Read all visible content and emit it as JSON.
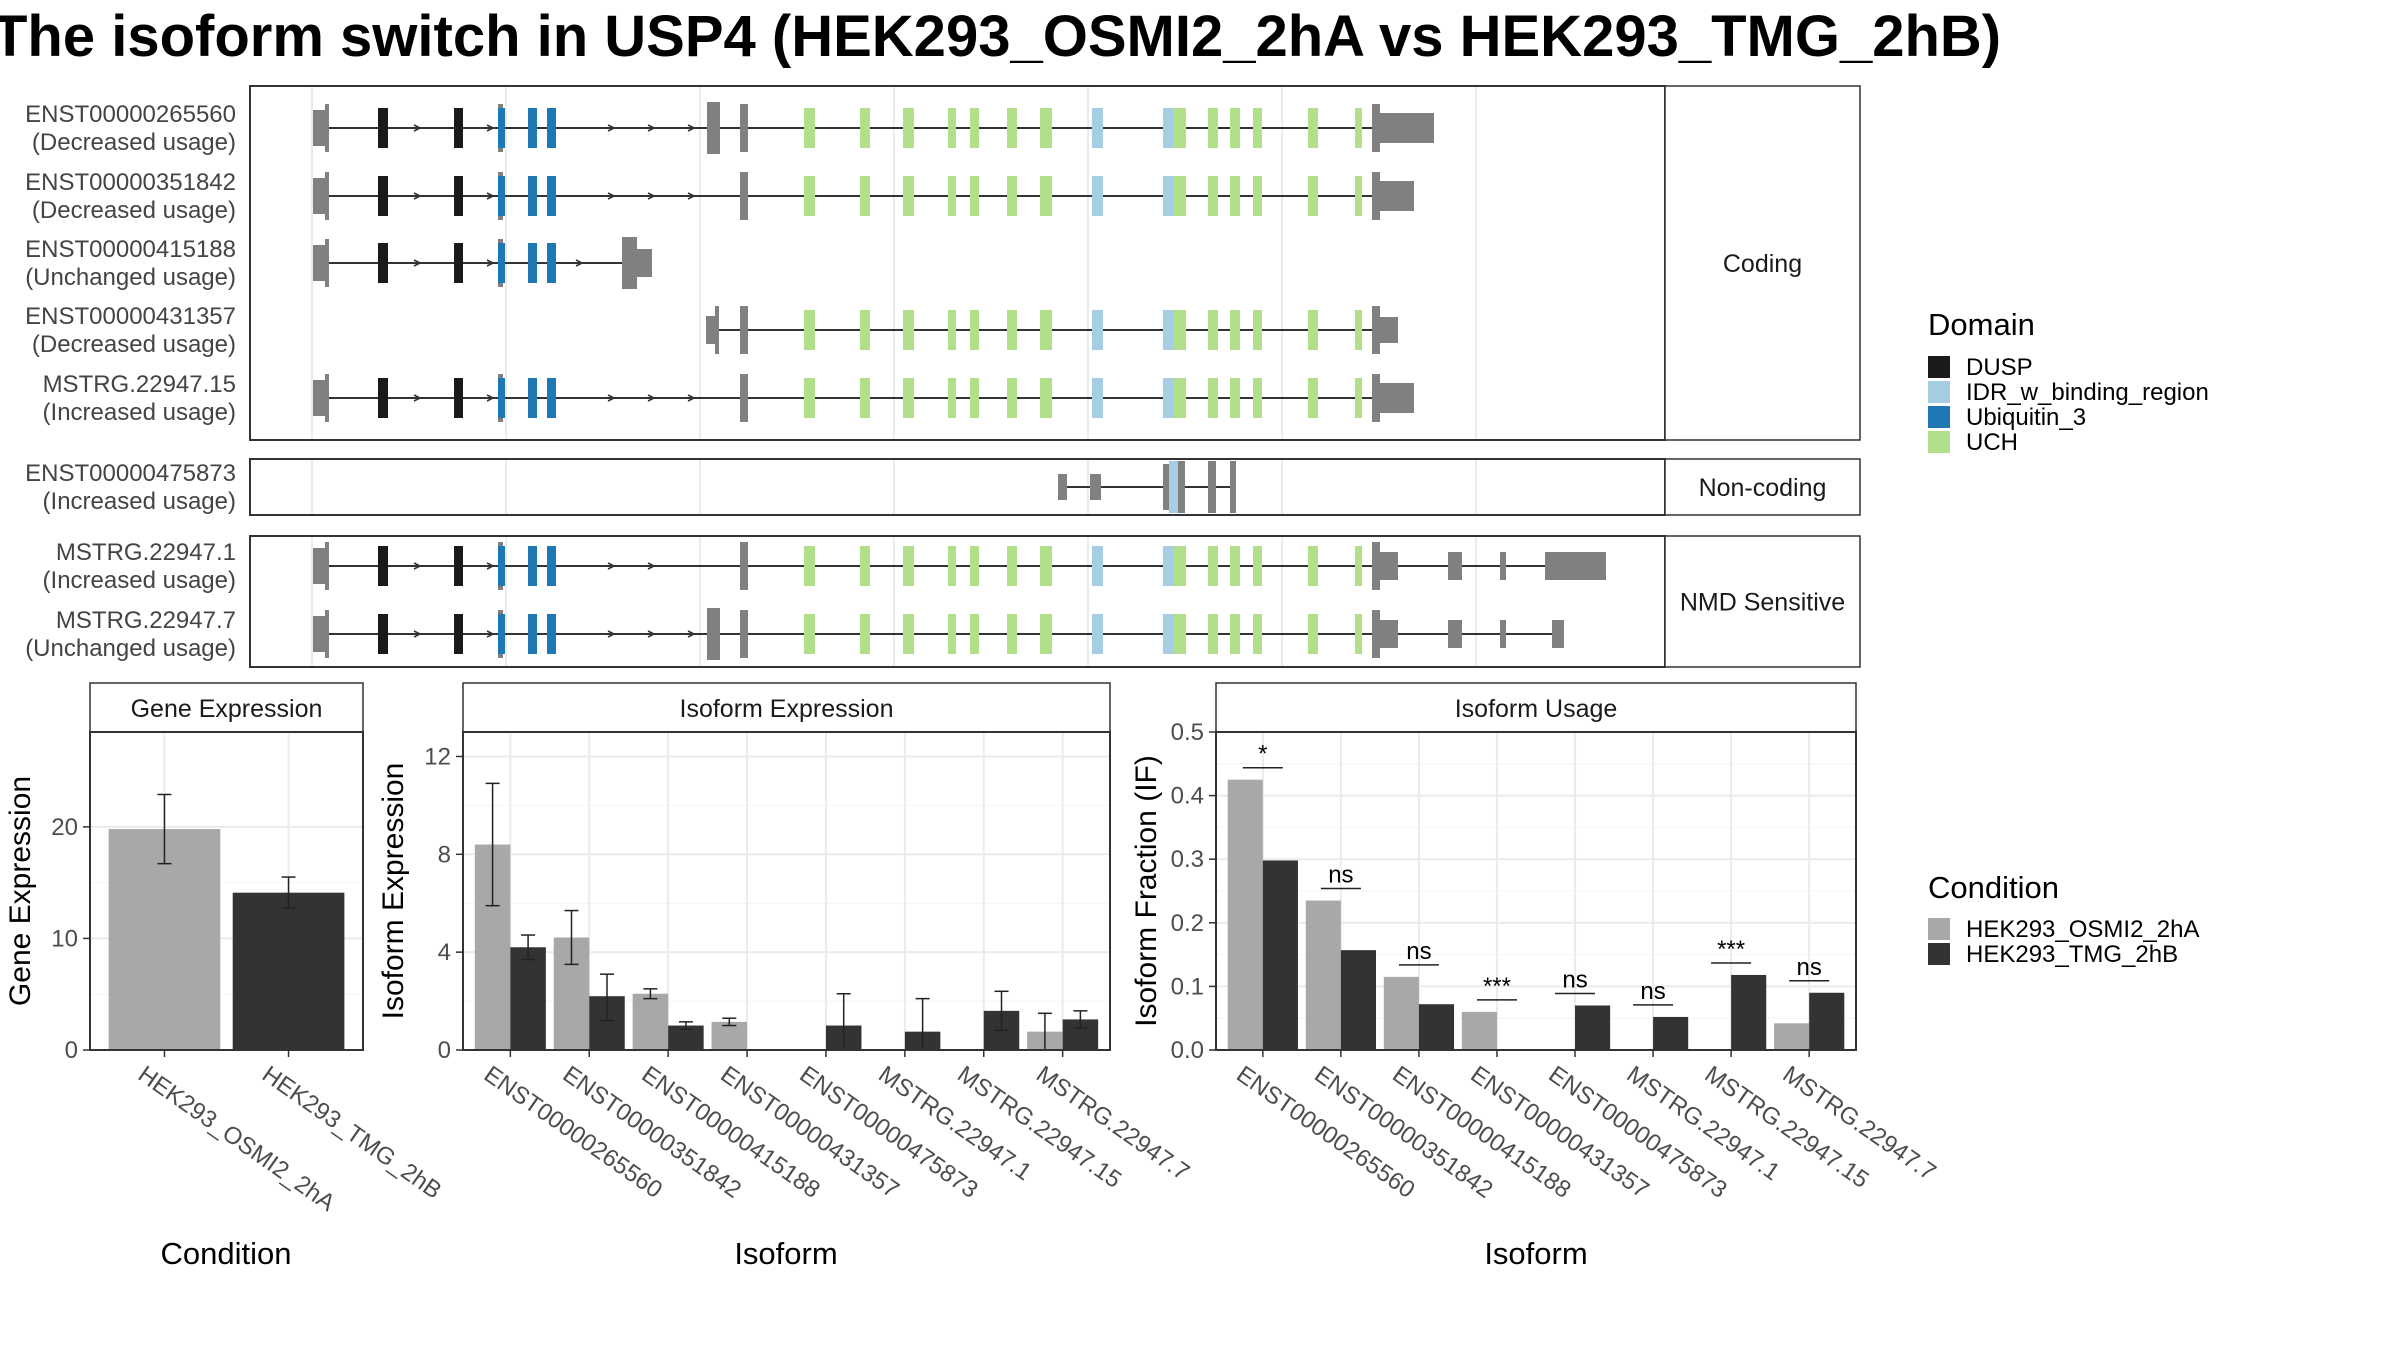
{
  "title": "The isoform switch in USP4 (HEK293_OSMI2_2hA vs HEK293_TMG_2hB)",
  "colors": {
    "condA": "#A8A8A8",
    "condB": "#333333",
    "exon": "#808080",
    "DUSP": "#1A1A1A",
    "IDR_w_binding_region": "#A6CEE3",
    "Ubiquitin_3": "#1F78B4",
    "UCH": "#B2DF8A"
  },
  "structure": {
    "groups": [
      {
        "name": "Coding",
        "tracks": [
          {
            "id": "ENST00000265560",
            "usage": "(Decreased usage)",
            "model": "full_long"
          },
          {
            "id": "ENST00000351842",
            "usage": "(Decreased usage)",
            "model": "full"
          },
          {
            "id": "ENST00000415188",
            "usage": "(Unchanged usage)",
            "model": "short5"
          },
          {
            "id": "ENST00000431357",
            "usage": "(Decreased usage)",
            "model": "trunc3"
          },
          {
            "id": "MSTRG.22947.15",
            "usage": "(Increased usage)",
            "model": "full"
          }
        ]
      },
      {
        "name": "Non-coding",
        "tracks": [
          {
            "id": "ENST00000475873",
            "usage": "(Increased usage)",
            "model": "noncoding"
          }
        ]
      },
      {
        "name": "NMD Sensitive",
        "tracks": [
          {
            "id": "MSTRG.22947.1",
            "usage": "(Increased usage)",
            "model": "nmd1"
          },
          {
            "id": "MSTRG.22947.7",
            "usage": "(Unchanged usage)",
            "model": "nmd7"
          }
        ]
      }
    ]
  },
  "legend_domain": {
    "title": "Domain",
    "items": [
      "DUSP",
      "IDR_w_binding_region",
      "Ubiquitin_3",
      "UCH"
    ]
  },
  "legend_condition": {
    "title": "Condition",
    "items": [
      "HEK293_OSMI2_2hA",
      "HEK293_TMG_2hB"
    ]
  },
  "chart_data": [
    {
      "type": "bar",
      "title": "Gene Expression",
      "xlabel": "Condition",
      "ylabel": "Gene Expression",
      "categories": [
        "HEK293_OSMI2_2hA",
        "HEK293_TMG_2hB"
      ],
      "values": [
        19.8,
        14.1
      ],
      "error_low": [
        16.7,
        12.7
      ],
      "error_high": [
        22.9,
        15.5
      ],
      "ylim": [
        0,
        28.5
      ],
      "yticks": [
        0,
        10,
        20
      ]
    },
    {
      "type": "bar",
      "title": "Isoform Expression",
      "xlabel": "Isoform",
      "ylabel": "Isoform Expression",
      "categories": [
        "ENST00000265560",
        "ENST00000351842",
        "ENST00000415188",
        "ENST00000431357",
        "ENST00000475873",
        "MSTRG.22947.1",
        "MSTRG.22947.15",
        "MSTRG.22947.7"
      ],
      "series": [
        {
          "name": "HEK293_OSMI2_2hA",
          "values": [
            8.4,
            4.6,
            2.3,
            1.15,
            0,
            0,
            0,
            0.75
          ],
          "error_low": [
            5.9,
            3.5,
            2.1,
            1.0,
            0,
            0,
            0,
            0
          ],
          "error_high": [
            10.9,
            5.7,
            2.5,
            1.3,
            0,
            0,
            0,
            1.5
          ]
        },
        {
          "name": "HEK293_TMG_2hB",
          "values": [
            4.2,
            2.2,
            1.0,
            0,
            1.0,
            0.75,
            1.6,
            1.25
          ],
          "error_low": [
            3.7,
            1.2,
            0.85,
            0,
            0,
            0,
            0.8,
            0.9
          ],
          "error_high": [
            4.7,
            3.1,
            1.15,
            0,
            2.3,
            2.1,
            2.4,
            1.6
          ]
        }
      ],
      "ylim": [
        0,
        13
      ],
      "yticks": [
        0,
        4,
        8,
        12
      ]
    },
    {
      "type": "bar",
      "title": "Isoform Usage",
      "xlabel": "Isoform",
      "ylabel": "Isoform Fraction (IF)",
      "categories": [
        "ENST00000265560",
        "ENST00000351842",
        "ENST00000415188",
        "ENST00000431357",
        "ENST00000475873",
        "MSTRG.22947.1",
        "MSTRG.22947.15",
        "MSTRG.22947.7"
      ],
      "series": [
        {
          "name": "HEK293_OSMI2_2hA",
          "values": [
            0.425,
            0.235,
            0.115,
            0.06,
            0,
            0,
            0,
            0.042
          ]
        },
        {
          "name": "HEK293_TMG_2hB",
          "values": [
            0.298,
            0.157,
            0.072,
            0,
            0.07,
            0.052,
            0.118,
            0.09
          ]
        }
      ],
      "annotations": [
        "*",
        "ns",
        "ns",
        "***",
        "ns",
        "ns",
        "***",
        "ns"
      ],
      "ylim": [
        0,
        0.5
      ],
      "yticks": [
        0.0,
        0.1,
        0.2,
        0.3,
        0.4,
        0.5
      ]
    }
  ]
}
